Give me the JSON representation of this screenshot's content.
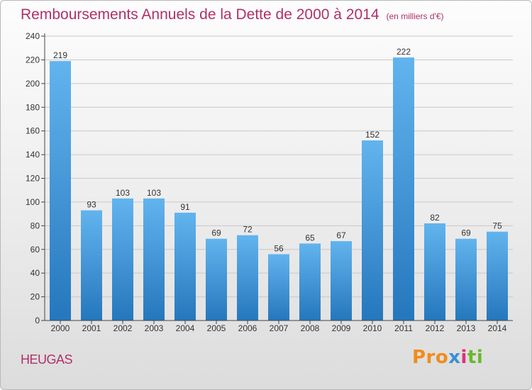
{
  "title": "Remboursements Annuels de la Dette de 2000 à 2014",
  "subtitle": "(en milliers d'€)",
  "commune": "HEUGAS",
  "logo": {
    "p1": "Pro",
    "p2": "x",
    "p3": "i",
    "p4": "ti"
  },
  "colors": {
    "bar_top": "#62b4ee",
    "bar_bottom": "#2577bd",
    "title": "#b0306a"
  },
  "chart_data": {
    "type": "bar",
    "categories": [
      "2000",
      "2001",
      "2002",
      "2003",
      "2004",
      "2005",
      "2006",
      "2007",
      "2008",
      "2009",
      "2010",
      "2011",
      "2012",
      "2013",
      "2014"
    ],
    "values": [
      219,
      93,
      103,
      103,
      91,
      69,
      72,
      56,
      65,
      67,
      152,
      222,
      82,
      69,
      75
    ],
    "ylim": [
      0,
      240
    ],
    "yticks": [
      0,
      20,
      40,
      60,
      80,
      100,
      120,
      140,
      160,
      180,
      200,
      220,
      240
    ],
    "grid": true
  }
}
